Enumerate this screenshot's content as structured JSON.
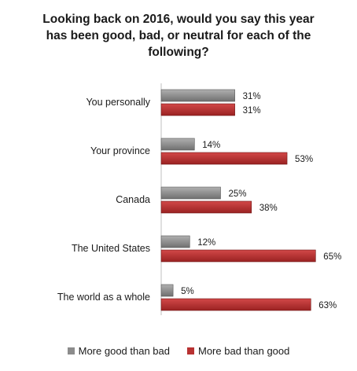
{
  "chart_data": {
    "type": "bar",
    "orientation": "horizontal",
    "title": [
      "Looking back on 2016, would you say this year",
      "has been good, bad, or neutral for each of the",
      "following?"
    ],
    "categories": [
      "You personally",
      "Your province",
      "Canada",
      "The United States",
      "The world as a whole"
    ],
    "series": [
      {
        "name": "More good than bad",
        "values": [
          31,
          14,
          25,
          12,
          5
        ],
        "labels": [
          "31%",
          "14%",
          "25%",
          "12%",
          "5%"
        ],
        "color": "#8c8c8c"
      },
      {
        "name": "More bad than good",
        "values": [
          31,
          53,
          38,
          65,
          63
        ],
        "labels": [
          "31%",
          "53%",
          "38%",
          "65%",
          "63%"
        ],
        "color": "#b83232"
      }
    ],
    "xlim": [
      0,
      100
    ],
    "grid": false,
    "legend_position": "bottom"
  }
}
